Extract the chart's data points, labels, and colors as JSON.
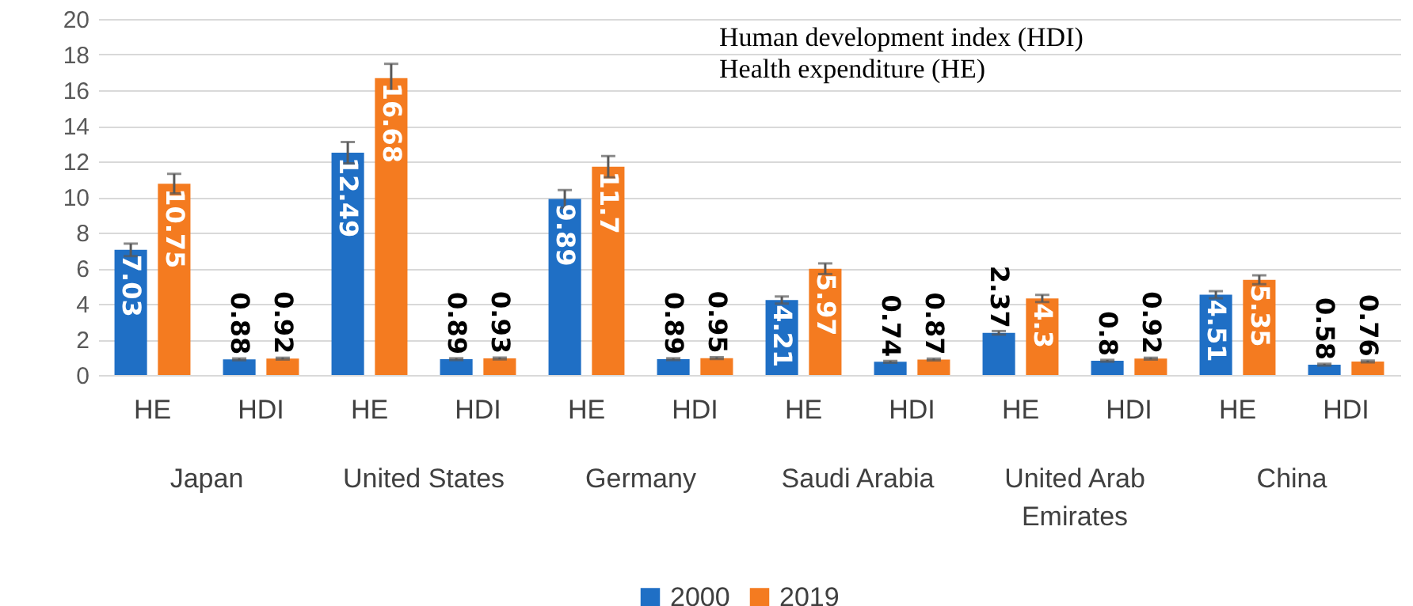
{
  "chart_data": {
    "type": "bar",
    "categories": [
      "HE",
      "HDI",
      "HE",
      "HDI",
      "HE",
      "HDI",
      "HE",
      "HDI",
      "HE",
      "HDI",
      "HE",
      "HDI"
    ],
    "series": [
      {
        "name": "2000",
        "color": "#1f6fc5",
        "values": [
          7.03,
          0.88,
          12.49,
          0.89,
          9.89,
          0.89,
          4.21,
          0.74,
          2.37,
          0.8,
          4.51,
          0.58
        ],
        "errors": [
          0.35,
          0.05,
          0.6,
          0.05,
          0.5,
          0.05,
          0.2,
          0.05,
          0.1,
          0.05,
          0.2,
          0.05
        ]
      },
      {
        "name": "2019",
        "color": "#f47b20",
        "values": [
          10.75,
          0.92,
          16.68,
          0.93,
          11.7,
          0.95,
          5.97,
          0.87,
          4.3,
          0.92,
          5.35,
          0.76
        ],
        "errors": [
          0.55,
          0.05,
          0.8,
          0.05,
          0.6,
          0.05,
          0.3,
          0.05,
          0.2,
          0.05,
          0.25,
          0.05
        ]
      }
    ],
    "annotations": [
      "Human development index (HDI)",
      "Health expenditure (HE)",
      "Japan",
      "United States",
      "Germany",
      "Saudi Arabia",
      "United Arab Emirates",
      "China"
    ],
    "ylim": [
      0,
      20
    ],
    "yticks": [
      0,
      2,
      4,
      6,
      8,
      10,
      12,
      14,
      16,
      18,
      20
    ],
    "grid": "y",
    "legend": "bottom",
    "data_labels": true
  }
}
